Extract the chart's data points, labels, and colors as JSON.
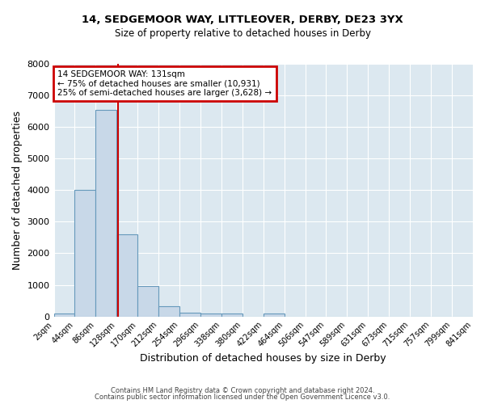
{
  "title1": "14, SEDGEMOOR WAY, LITTLEOVER, DERBY, DE23 3YX",
  "title2": "Size of property relative to detached houses in Derby",
  "xlabel": "Distribution of detached houses by size in Derby",
  "ylabel": "Number of detached properties",
  "bar_edges": [
    2,
    44,
    86,
    128,
    170,
    212,
    254,
    296,
    338,
    380,
    422,
    464,
    506,
    547,
    589,
    631,
    673,
    715,
    757,
    799,
    841
  ],
  "bar_heights": [
    80,
    4000,
    6550,
    2600,
    960,
    310,
    120,
    90,
    80,
    0,
    100,
    0,
    0,
    0,
    0,
    0,
    0,
    0,
    0,
    0
  ],
  "bar_color": "#c8d8e8",
  "bar_edge_color": "#6699bb",
  "property_line_x": 131,
  "property_line_color": "#cc0000",
  "annotation_line1": "14 SEDGEMOOR WAY: 131sqm",
  "annotation_line2": "← 75% of detached houses are smaller (10,931)",
  "annotation_line3": "25% of semi-detached houses are larger (3,628) →",
  "annotation_box_color": "#cc0000",
  "annotation_text_color": "#000000",
  "ylim": [
    0,
    8000
  ],
  "yticks": [
    0,
    1000,
    2000,
    3000,
    4000,
    5000,
    6000,
    7000,
    8000
  ],
  "xtick_labels": [
    "2sqm",
    "44sqm",
    "86sqm",
    "128sqm",
    "170sqm",
    "212sqm",
    "254sqm",
    "296sqm",
    "338sqm",
    "380sqm",
    "422sqm",
    "464sqm",
    "506sqm",
    "547sqm",
    "589sqm",
    "631sqm",
    "673sqm",
    "715sqm",
    "757sqm",
    "799sqm",
    "841sqm"
  ],
  "grid_color": "#ffffff",
  "background_color": "#dce8f0",
  "fig_background_color": "#ffffff",
  "footer_text1": "Contains HM Land Registry data © Crown copyright and database right 2024.",
  "footer_text2": "Contains public sector information licensed under the Open Government Licence v3.0."
}
